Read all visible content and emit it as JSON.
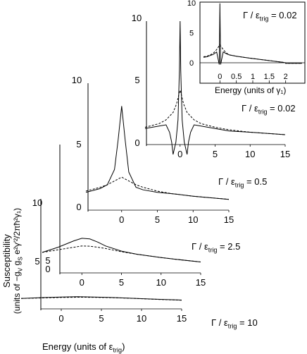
{
  "figure": {
    "ylabel_line1": "Susceptibility",
    "ylabel_line2": "(units of −g_V g_S e²γ′²/2πħ²γ₁)",
    "xlabel": "Energy (units of ε_trig)"
  },
  "chart_data": [
    {
      "type": "line",
      "panel": "gamma-10",
      "annotation": "Γ / ε_trig = 10",
      "xlim": [
        -5,
        15
      ],
      "ylim": [
        0,
        10
      ],
      "x_ticks": [
        0,
        5,
        10,
        15
      ],
      "y_ticks": [
        5,
        10
      ],
      "series": [
        {
          "style": "solid",
          "x": [
            -5,
            -2,
            0,
            2,
            4,
            6,
            8,
            10,
            12,
            15
          ],
          "y": [
            0.95,
            1.03,
            1.08,
            1.1,
            1.08,
            1.04,
            0.99,
            0.93,
            0.87,
            0.8
          ]
        },
        {
          "style": "dashed",
          "x": [
            -5,
            -2,
            0,
            2,
            4,
            6,
            8,
            10,
            12,
            15
          ],
          "y": [
            0.95,
            1.0,
            1.04,
            1.06,
            1.05,
            1.02,
            0.98,
            0.92,
            0.86,
            0.79
          ]
        }
      ]
    },
    {
      "type": "line",
      "panel": "gamma-2.5",
      "annotation": "Γ / ε_trig = 2.5",
      "xlim": [
        -5,
        15
      ],
      "ylim": [
        0,
        10
      ],
      "x_ticks": [
        0,
        5,
        10,
        15
      ],
      "y_ticks": [
        0,
        5
      ],
      "series": [
        {
          "style": "solid",
          "x": [
            -5,
            -3,
            -1,
            0,
            1,
            2,
            3,
            5,
            7,
            10,
            12,
            15
          ],
          "y": [
            1.6,
            2.0,
            2.5,
            2.7,
            2.65,
            2.4,
            2.1,
            1.7,
            1.45,
            1.2,
            1.05,
            0.85
          ]
        },
        {
          "style": "dashed",
          "x": [
            -5,
            -3,
            -1,
            0,
            1,
            2,
            3,
            5,
            7,
            10,
            12,
            15
          ],
          "y": [
            1.6,
            1.8,
            2.0,
            2.1,
            2.08,
            2.0,
            1.9,
            1.65,
            1.45,
            1.2,
            1.05,
            0.85
          ]
        }
      ]
    },
    {
      "type": "line",
      "panel": "gamma-0.5",
      "annotation": "Γ / ε_trig = 0.5",
      "xlim": [
        -5,
        15
      ],
      "ylim": [
        0,
        10
      ],
      "x_ticks": [
        0,
        5,
        10,
        15
      ],
      "y_ticks": [
        0,
        5,
        10
      ],
      "series": [
        {
          "style": "solid",
          "x": [
            -5,
            -3,
            -2,
            -1,
            -0.5,
            0,
            0.5,
            1,
            2,
            3,
            5,
            7,
            10,
            15
          ],
          "y": [
            1.4,
            1.7,
            2.0,
            3.2,
            5.5,
            8.2,
            5.5,
            3.0,
            1.8,
            1.6,
            1.4,
            1.3,
            1.1,
            0.85
          ]
        },
        {
          "style": "dashed",
          "x": [
            -5,
            -3,
            -2,
            -1,
            0,
            1,
            2,
            3,
            5,
            7,
            10,
            15
          ],
          "y": [
            1.5,
            1.8,
            2.0,
            2.3,
            2.6,
            2.3,
            2.0,
            1.8,
            1.5,
            1.3,
            1.1,
            0.85
          ]
        }
      ]
    },
    {
      "type": "line",
      "panel": "gamma-0.02",
      "annotation": "Γ / ε_trig = 0.02",
      "xlim": [
        -5,
        15
      ],
      "ylim": [
        0,
        10
      ],
      "x_ticks": [
        0,
        5,
        10,
        15
      ],
      "y_ticks": [
        0,
        5,
        10
      ],
      "series": [
        {
          "style": "solid",
          "x": [
            -5,
            -3,
            -2,
            -1.5,
            -1.2,
            -1,
            -0.6,
            -0.3,
            -0.1,
            0,
            0.1,
            0.3,
            0.6,
            1,
            1.2,
            1.5,
            2,
            3,
            5,
            7,
            10,
            15
          ],
          "y": [
            1.3,
            1.5,
            1.6,
            1.0,
            0.2,
            -0.8,
            0.2,
            2.0,
            6.0,
            10.0,
            6.0,
            2.0,
            0.2,
            -0.8,
            0.2,
            1.0,
            1.6,
            1.5,
            1.3,
            1.1,
            1.0,
            0.8
          ]
        },
        {
          "style": "dashed",
          "x": [
            -5,
            -3,
            -2,
            -1,
            -0.5,
            -0.2,
            0,
            0.2,
            0.5,
            1,
            2,
            3,
            5,
            7,
            10,
            15
          ],
          "y": [
            1.4,
            1.7,
            2.0,
            2.6,
            3.3,
            4.0,
            4.4,
            4.0,
            3.3,
            2.6,
            2.0,
            1.7,
            1.4,
            1.2,
            1.0,
            0.8
          ]
        }
      ]
    },
    {
      "type": "line",
      "panel": "inset",
      "annotation": "Γ / ε_trig = 0.02",
      "xlabel": "Energy (units of γ₁)",
      "xlim": [
        -0.5,
        2.5
      ],
      "ylim": [
        -0.4,
        10
      ],
      "x_ticks": [
        0,
        0.5,
        1,
        1.5,
        2
      ],
      "y_ticks": [
        0,
        5,
        10
      ],
      "series": [
        {
          "style": "solid",
          "x": [
            -0.5,
            -0.4,
            -0.3,
            -0.2,
            -0.1,
            -0.05,
            -0.02,
            0,
            0.02,
            0.05,
            0.1,
            0.2,
            0.3,
            0.5,
            0.8,
            1.0,
            1.3,
            1.6,
            1.9,
            2.0,
            2.0,
            2.5
          ],
          "y": [
            0.9,
            1.0,
            1.2,
            1.4,
            1.8,
            0.5,
            -0.3,
            10,
            -0.3,
            0.5,
            1.8,
            1.5,
            1.3,
            1.1,
            0.85,
            0.7,
            0.5,
            0.3,
            0.1,
            0.0,
            -0.1,
            -0.1
          ]
        },
        {
          "style": "dashed",
          "x": [
            -0.5,
            -0.4,
            -0.3,
            -0.2,
            -0.1,
            -0.05,
            0,
            0.05,
            0.1,
            0.2,
            0.3,
            0.5,
            0.8,
            1.0,
            1.3,
            1.6,
            1.9,
            2.0,
            2.0,
            2.5
          ],
          "y": [
            1.0,
            1.1,
            1.3,
            1.6,
            2.2,
            2.6,
            3.0,
            2.6,
            2.2,
            1.6,
            1.3,
            1.1,
            0.85,
            0.7,
            0.5,
            0.3,
            0.1,
            0.0,
            -0.1,
            -0.1
          ]
        }
      ]
    }
  ]
}
